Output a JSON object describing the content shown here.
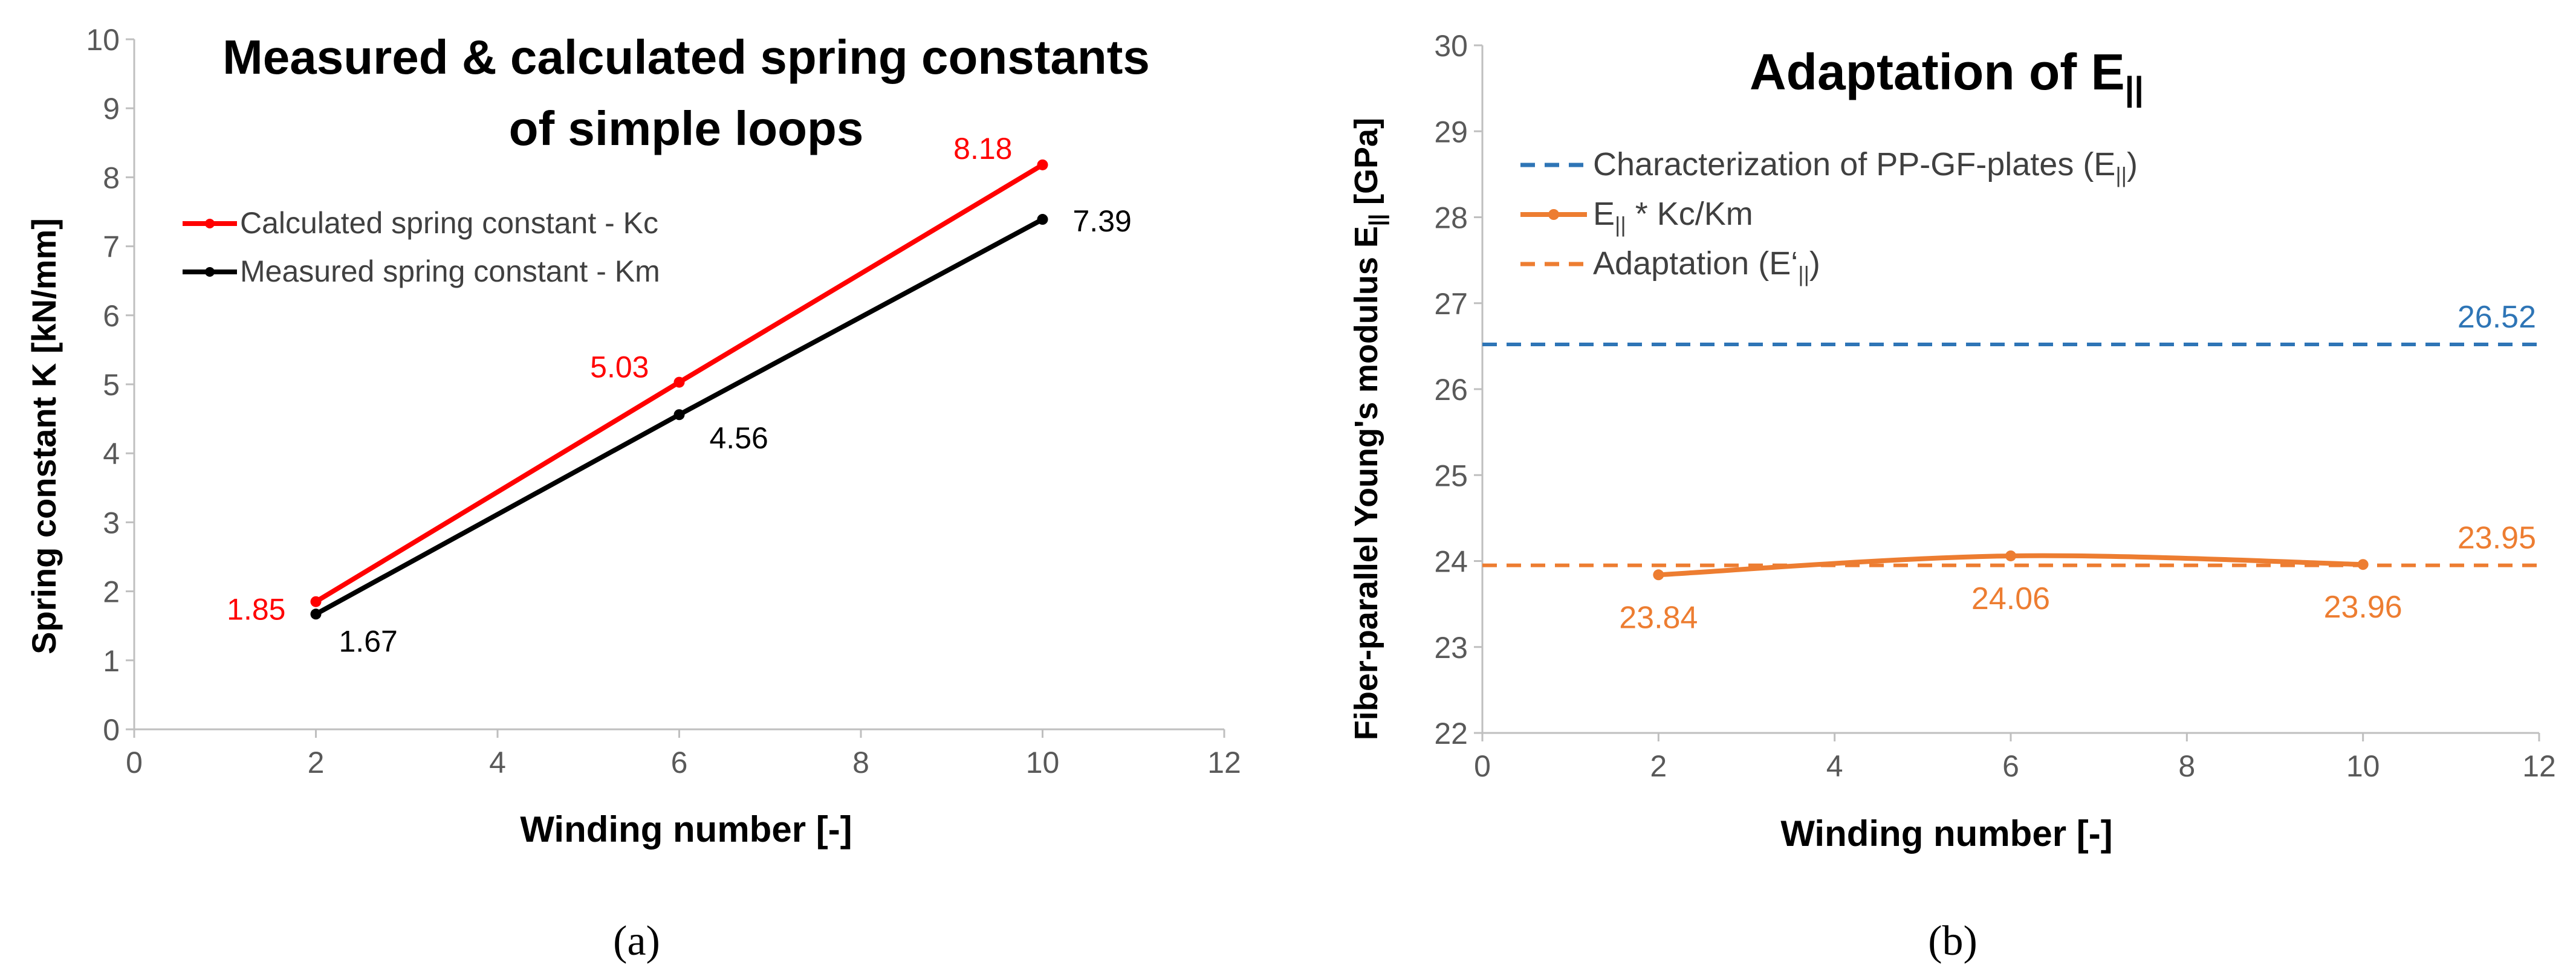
{
  "chart_data": [
    {
      "type": "line",
      "title_lines": [
        "Measured & calculated spring constants",
        "of simple loops"
      ],
      "xlabel": "Winding number [-]",
      "ylabel": "Spring constant K [kN/mm]",
      "xlim": [
        0,
        12
      ],
      "ylim": [
        0,
        10
      ],
      "xticks": [
        "0",
        "2",
        "4",
        "6",
        "8",
        "10",
        "12"
      ],
      "yticks": [
        "0",
        "1",
        "2",
        "3",
        "4",
        "5",
        "6",
        "7",
        "8",
        "9",
        "10"
      ],
      "grid": false,
      "legend_position": "top-left",
      "series": [
        {
          "name": "Calculated spring constant - Kc",
          "color": "#ff0000",
          "x": [
            2,
            6,
            10
          ],
          "y": [
            1.85,
            5.03,
            8.18
          ],
          "labels": [
            "1.85",
            "5.03",
            "8.18"
          ]
        },
        {
          "name": "Measured spring constant - Km",
          "color": "#000000",
          "x": [
            2,
            6,
            10
          ],
          "y": [
            1.67,
            4.56,
            7.39
          ],
          "labels": [
            "1.67",
            "4.56",
            "7.39"
          ]
        }
      ],
      "caption": "(a)"
    },
    {
      "type": "line",
      "title": "Adaptation of E",
      "title_sub": "||",
      "xlabel": "Winding number [-]",
      "ylabel": "Fiber-parallel Young's modulus E",
      "ylabel_sub": "||",
      "ylabel_unit": " [GPa]",
      "xlim": [
        0,
        12
      ],
      "ylim": [
        22,
        30
      ],
      "xticks": [
        "0",
        "2",
        "4",
        "6",
        "8",
        "10",
        "12"
      ],
      "yticks": [
        "22",
        "23",
        "24",
        "25",
        "26",
        "27",
        "28",
        "29",
        "30"
      ],
      "grid": false,
      "legend_position": "top-left",
      "series": [
        {
          "name_parts": [
            "Characterization of PP-GF-plates (E",
            "||",
            ")"
          ],
          "color": "#2e75b6",
          "dashed": true,
          "x": [
            0,
            12
          ],
          "y": [
            26.52,
            26.52
          ],
          "value_label": "26.52"
        },
        {
          "name_parts": [
            "E",
            "||",
            " * Kc/Km"
          ],
          "color": "#ed7d31",
          "dashed": false,
          "x": [
            2,
            6,
            10
          ],
          "y": [
            23.84,
            24.06,
            23.96
          ],
          "labels": [
            "23.84",
            "24.06",
            "23.96"
          ]
        },
        {
          "name_parts": [
            "Adaptation (E‘",
            "||",
            ")"
          ],
          "color": "#ed7d31",
          "dashed": true,
          "x": [
            0,
            12
          ],
          "y": [
            23.95,
            23.95
          ],
          "value_label": "23.95"
        }
      ],
      "caption": "(b)"
    }
  ]
}
